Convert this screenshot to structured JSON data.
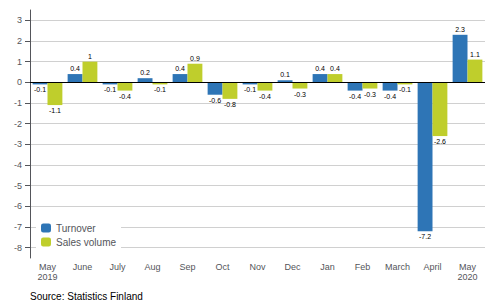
{
  "chart_data": {
    "type": "bar",
    "categories": [
      "May\n2019",
      "June",
      "July",
      "Aug",
      "Sep",
      "Oct",
      "Nov",
      "Dec",
      "Jan",
      "Feb",
      "March",
      "April",
      "May\n2020"
    ],
    "series": [
      {
        "name": "Turnover",
        "color": "#2e75b6",
        "values": [
          -0.1,
          0.4,
          -0.1,
          0.2,
          0.4,
          -0.6,
          -0.1,
          0.1,
          0.4,
          -0.4,
          -0.4,
          -7.2,
          2.3
        ]
      },
      {
        "name": "Sales volume",
        "color": "#bfce2c",
        "values": [
          -1.1,
          1.0,
          -0.4,
          -0.1,
          0.9,
          -0.8,
          -0.4,
          -0.3,
          0.4,
          -0.3,
          -0.1,
          -2.6,
          1.1
        ]
      }
    ],
    "ylim": [
      -8.5,
      3.5
    ],
    "yticks": [
      -8,
      -7,
      -6,
      -5,
      -4,
      -3,
      -2,
      -1,
      0,
      1,
      2,
      3
    ],
    "grid": true,
    "legend": "lower left",
    "data_labels": true,
    "annotations": [
      "Source: Statistics Finland"
    ]
  }
}
